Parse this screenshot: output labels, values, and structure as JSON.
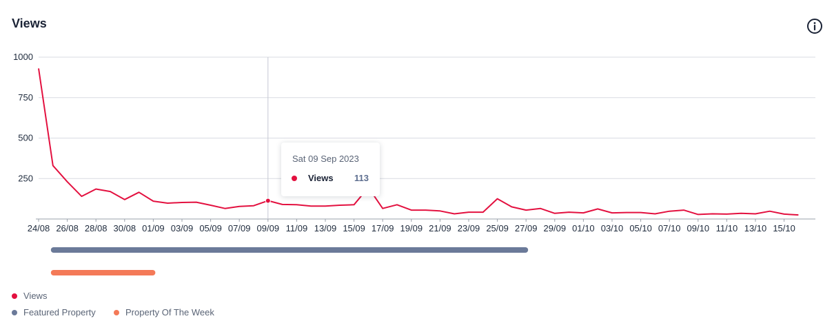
{
  "header": {
    "title": "Views",
    "info_icon": "info-circle-icon"
  },
  "colors": {
    "views": "#e3103f",
    "featured": "#6b7a99",
    "potw": "#f47a58",
    "grid": "#d8dbe2",
    "crosshair": "#c4c8d2"
  },
  "tooltip": {
    "date": "Sat 09 Sep 2023",
    "series": "Views",
    "value": "113"
  },
  "legend": [
    {
      "label": "Views",
      "color": "#e3103f"
    },
    {
      "label": "Featured Property",
      "color": "#6b7a99"
    },
    {
      "label": "Property Of The Week",
      "color": "#f47a58"
    }
  ],
  "chart_data": {
    "type": "line",
    "title": "Views",
    "xlabel": "",
    "ylabel": "",
    "ylim": [
      0,
      1000
    ],
    "y_ticks": [
      250,
      500,
      750,
      1000
    ],
    "x_start": "24/08",
    "x_tick_labels": [
      "24/08",
      "26/08",
      "28/08",
      "30/08",
      "01/09",
      "03/09",
      "05/09",
      "07/09",
      "09/09",
      "11/09",
      "13/09",
      "15/09",
      "17/09",
      "19/09",
      "21/09",
      "23/09",
      "25/09",
      "27/09",
      "29/09",
      "01/10",
      "03/10",
      "05/10",
      "07/10",
      "09/10",
      "11/10",
      "13/10",
      "15/10"
    ],
    "series": [
      {
        "name": "Views",
        "values": [
          930,
          330,
          230,
          140,
          185,
          170,
          120,
          165,
          110,
          98,
          102,
          104,
          85,
          65,
          78,
          82,
          113,
          90,
          88,
          80,
          80,
          85,
          88,
          195,
          65,
          88,
          55,
          55,
          50,
          32,
          42,
          42,
          125,
          75,
          55,
          65,
          35,
          42,
          38,
          62,
          38,
          40,
          40,
          32,
          48,
          55,
          28,
          32,
          30,
          35,
          32,
          48,
          30,
          25
        ]
      },
      {
        "name": "Featured Property",
        "type": "range",
        "start_index": 1,
        "end_index": 34
      },
      {
        "name": "Property Of The Week",
        "type": "range",
        "start_index": 1,
        "end_index": 8
      }
    ],
    "highlight": {
      "series": "Views",
      "index": 16,
      "date": "Sat 09 Sep 2023",
      "value": 113
    }
  }
}
